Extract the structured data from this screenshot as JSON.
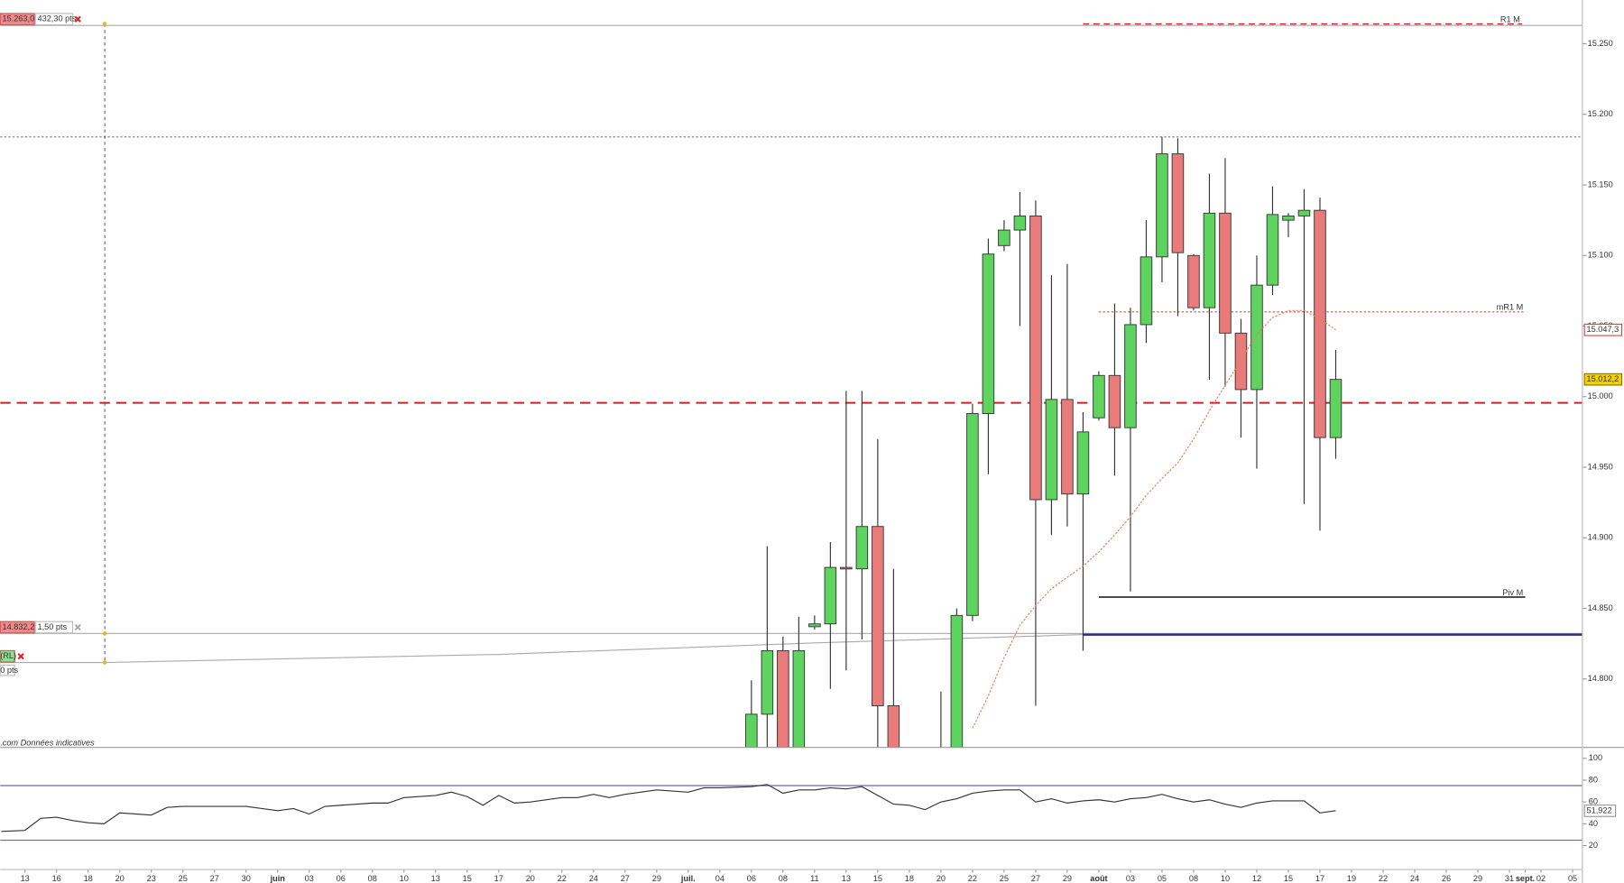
{
  "chart_data": {
    "type": "candlestick",
    "xlim": [
      -1.57,
      98.62
    ],
    "xticks": [
      {
        "value": 0,
        "label": "13"
      },
      {
        "value": 2,
        "label": "16"
      },
      {
        "value": 4,
        "label": "18"
      },
      {
        "value": 6,
        "label": "20"
      },
      {
        "value": 8,
        "label": "23"
      },
      {
        "value": 10,
        "label": "25"
      },
      {
        "value": 12,
        "label": "27"
      },
      {
        "value": 14,
        "label": "30"
      },
      {
        "value": 16,
        "label": "juin"
      },
      {
        "value": 18,
        "label": "03"
      },
      {
        "value": 20,
        "label": "06"
      },
      {
        "value": 22,
        "label": "08"
      },
      {
        "value": 24,
        "label": "10"
      },
      {
        "value": 26,
        "label": "13"
      },
      {
        "value": 28,
        "label": "15"
      },
      {
        "value": 30,
        "label": "17"
      },
      {
        "value": 32,
        "label": "20"
      },
      {
        "value": 34,
        "label": "22"
      },
      {
        "value": 36,
        "label": "24"
      },
      {
        "value": 38,
        "label": "27"
      },
      {
        "value": 40,
        "label": "29"
      },
      {
        "value": 42,
        "label": "juil."
      },
      {
        "value": 44,
        "label": "04"
      },
      {
        "value": 46,
        "label": "06"
      },
      {
        "value": 48,
        "label": "08"
      },
      {
        "value": 50,
        "label": "11"
      },
      {
        "value": 52,
        "label": "13"
      },
      {
        "value": 54,
        "label": "15"
      },
      {
        "value": 56,
        "label": "18"
      },
      {
        "value": 58,
        "label": "20"
      },
      {
        "value": 60,
        "label": "22"
      },
      {
        "value": 62,
        "label": "25"
      },
      {
        "value": 64,
        "label": "27"
      },
      {
        "value": 66,
        "label": "29"
      },
      {
        "value": 68,
        "label": "août"
      },
      {
        "value": 70,
        "label": "03"
      },
      {
        "value": 72,
        "label": "05"
      },
      {
        "value": 74,
        "label": "08"
      },
      {
        "value": 76,
        "label": "10"
      },
      {
        "value": 78,
        "label": "12"
      },
      {
        "value": 80,
        "label": "15"
      },
      {
        "value": 82,
        "label": "17"
      },
      {
        "value": 84,
        "label": "19"
      },
      {
        "value": 86,
        "label": "22"
      },
      {
        "value": 88,
        "label": "24"
      },
      {
        "value": 90,
        "label": "26"
      },
      {
        "value": 92,
        "label": "29"
      },
      {
        "value": 94,
        "label": "31"
      },
      {
        "value": 95,
        "label": "sept."
      },
      {
        "value": 96,
        "label": "02"
      },
      {
        "value": 98,
        "label": "05"
      }
    ],
    "ylim": [
      14751.5,
      15281
    ],
    "yticks": [
      {
        "value": 14800,
        "label": "14.800"
      },
      {
        "value": 14850,
        "label": "14.850"
      },
      {
        "value": 14900,
        "label": "14.900"
      },
      {
        "value": 14950,
        "label": "14.950"
      },
      {
        "value": 15000,
        "label": "15.000"
      },
      {
        "value": 15050,
        "label": "15.050"
      },
      {
        "value": 15100,
        "label": "15.100"
      },
      {
        "value": 15150,
        "label": "15.150"
      },
      {
        "value": 15200,
        "label": "15.200"
      },
      {
        "value": 15250,
        "label": "15.250"
      }
    ],
    "candles": {
      "x": [
        46,
        47,
        48,
        49,
        50,
        51,
        52,
        53,
        54,
        55,
        58,
        59,
        60,
        61,
        62,
        63,
        64,
        65,
        66,
        67,
        68,
        69,
        70,
        71,
        72,
        73,
        74,
        75,
        76,
        77,
        78,
        79,
        80,
        81,
        82,
        83
      ],
      "open": [
        14740,
        14775,
        14820,
        14740,
        14837,
        14839,
        14879,
        14878,
        14908,
        14781,
        14700,
        14730,
        14845,
        14988,
        15107,
        15118,
        15128,
        14927,
        14998,
        14931,
        14985,
        15015,
        14978,
        15051,
        15099,
        15172,
        15100,
        15063,
        15130,
        15045,
        15005,
        15079,
        15125,
        15128,
        15132,
        14971
      ],
      "high": [
        14799,
        14894,
        14830,
        14844,
        14845,
        14897,
        15004,
        15004,
        14970,
        14878,
        14791,
        14850,
        14995,
        15112,
        15125,
        15145,
        15139,
        15086,
        15094,
        14989,
        15018,
        15066,
        15063,
        15125,
        15184,
        15183,
        15101,
        15158,
        15169,
        15055,
        15100,
        15149,
        15130,
        15147,
        15141,
        15033
      ],
      "low": [
        14720,
        14730,
        14720,
        14730,
        14835,
        14793,
        14806,
        14828,
        14730,
        14720,
        14680,
        14720,
        14841,
        14945,
        15103,
        15050,
        14781,
        14902,
        14908,
        14820,
        14983,
        14944,
        14862,
        15038,
        15081,
        15057,
        15061,
        15012,
        15007,
        14971,
        14949,
        15072,
        15113,
        14924,
        14905,
        14956
      ],
      "close": [
        14775,
        14820,
        14735,
        14820,
        14839,
        14879,
        14878,
        14908,
        14781,
        14740,
        14730,
        14845,
        14988,
        15101,
        15118,
        15128,
        14927,
        14998,
        14931,
        14975,
        15015,
        14978,
        15051,
        15099,
        15172,
        15102,
        15063,
        15130,
        15045,
        15005,
        15079,
        15129,
        15128,
        15132,
        14971,
        15012.2
      ],
      "up_color": "#5fd35f",
      "down_color": "#e97b7b"
    },
    "moving_average": {
      "x": [
        60,
        61,
        62,
        63,
        64,
        65,
        66,
        67,
        68,
        69,
        70,
        71,
        72,
        73,
        74,
        75,
        76,
        77,
        78,
        79,
        80,
        81,
        82,
        83
      ],
      "values": [
        14765,
        14788,
        14815,
        14838,
        14852,
        14864,
        14872,
        14880,
        14890,
        14902,
        14915,
        14930,
        14942,
        14953,
        14970,
        14990,
        15008,
        15026,
        15044,
        15056,
        15061,
        15061,
        15055,
        15047.3
      ],
      "color": "#f07a50"
    },
    "trendline": {
      "x": [
        -1.57,
        5,
        30,
        50,
        67
      ],
      "values": [
        14811.6,
        14811.6,
        14817.4,
        14825.5,
        14831.4
      ],
      "color": "#aaaaaa"
    },
    "levels": [
      {
        "name": "R1 M",
        "value": 15264,
        "x": [
          67,
          94.8
        ],
        "color": "#cc2222",
        "style": "dashed"
      },
      {
        "name": "mR1 M",
        "value": 15060,
        "x": [
          68,
          95
        ],
        "color": "#dd4444",
        "style": "dotted"
      },
      {
        "name": "Piv M",
        "value": 14858,
        "x": [
          68,
          95
        ],
        "color": "#111111",
        "style": "solid"
      },
      {
        "value": 14831.4,
        "x": [
          67,
          98.62
        ],
        "color": "#2e2e8a",
        "style": "thick"
      },
      {
        "value": 15184,
        "x": [
          -1.57,
          98.62
        ],
        "color": "#777777",
        "style": "dotted"
      },
      {
        "value": 14995.6,
        "x": [
          -1.57,
          98.62
        ],
        "color": "#cc2222",
        "style": "bigdash"
      }
    ],
    "price_labels": [
      {
        "value": 15047.3,
        "label": "15.047,3",
        "style": "outline"
      },
      {
        "value": 15012.2,
        "label": "15.012,2",
        "style": "filled"
      }
    ],
    "orders": [
      {
        "price": 15263,
        "label": "15.263,0",
        "distance": "432,30 pts",
        "icon_color": "#dd2222"
      },
      {
        "price": 14832.2,
        "label": "14.832,2",
        "distance": "1,50 pts",
        "icon_color": "#aaaaaa"
      },
      {
        "label": "(RL)",
        "distance": "0 pts",
        "icon_color": "#dd2222"
      }
    ],
    "disclaimer": ".com Données indicatives",
    "rsi": {
      "ylim": [
        0,
        110
      ],
      "yticks": [
        20,
        40,
        60,
        80,
        100
      ],
      "levels": [
        75,
        25
      ],
      "x": [
        -1.5,
        0,
        1,
        2,
        3,
        4,
        5,
        6,
        8,
        9,
        10,
        12,
        14,
        16,
        17,
        18,
        19,
        22,
        23,
        24,
        26,
        27,
        28,
        29,
        30,
        31,
        32,
        34,
        35,
        36,
        37,
        38,
        40,
        42,
        43,
        44,
        46,
        47,
        48,
        49,
        50,
        51,
        52,
        53,
        54,
        55,
        56,
        57,
        58,
        59,
        60,
        61,
        62,
        63,
        64,
        65,
        66,
        67,
        68,
        69,
        70,
        71,
        72,
        73,
        74,
        75,
        76,
        77,
        78,
        79,
        80,
        81,
        82,
        83
      ],
      "values": [
        33,
        34,
        45,
        46,
        43,
        41,
        40,
        50,
        48,
        55,
        56,
        56,
        56,
        52,
        54,
        49,
        56,
        59,
        59,
        64,
        66,
        69,
        65,
        57,
        66,
        59,
        60,
        64,
        64,
        67,
        64,
        67,
        71,
        69,
        73,
        73,
        74,
        76,
        68,
        71,
        71,
        73,
        72,
        74,
        66,
        58,
        57,
        53,
        60,
        63,
        68,
        70,
        71,
        71,
        60,
        63,
        59,
        61,
        62,
        60,
        63,
        64,
        67,
        63,
        60,
        62,
        58,
        55,
        59,
        61,
        61,
        61,
        50,
        52
      ],
      "last": 51.922,
      "last_label": "51,922",
      "color": "#333333",
      "level_color": "#6666bb"
    }
  }
}
